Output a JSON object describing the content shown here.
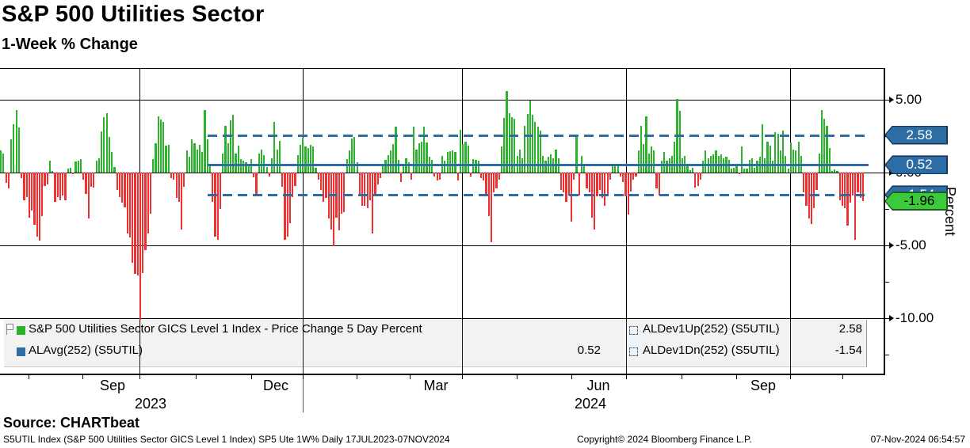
{
  "window": {
    "title": "S&P 500 Utilities Sector",
    "subtitle": "1-Week % Change"
  },
  "source_line": "Source: CHARTbeat",
  "footer": {
    "security_line": "S5UTIL Index (S&P 500 Utilities Sector GICS Level 1 Index) SP5 Ute 1W%  Daily 17JUL2023-07NOV2024",
    "copyright": "Copyright© 2024 Bloomberg Finance L.P.",
    "timestamp": "07-Nov-2024 06:54:57"
  },
  "legend": {
    "items": [
      {
        "swatch": "green-solid",
        "label": "S&P 500 Utilities Sector GICS Level 1 Index - Price Change 5 Day Percent",
        "value": ""
      },
      {
        "swatch": "blue-solid",
        "label": "ALAvg(252) (S5UTIL)",
        "value": "0.52"
      },
      {
        "swatch": "blue-dashed",
        "label": "ALDev1Up(252) (S5UTIL)",
        "value": "2.58"
      },
      {
        "swatch": "blue-dashed",
        "label": "ALDev1Dn(252) (S5UTIL)",
        "value": "-1.54"
      }
    ]
  },
  "colors": {
    "bar_up": "#2bb32b",
    "bar_down": "#ee3030",
    "overlay_blue": "#2e6da4",
    "badge_blue": "#2e6da4",
    "badge_blue_border": "#173a5e",
    "badge_green": "#3cc93c",
    "badge_green_border": "#1d5e1d",
    "grid": "#000000",
    "legend_bg": "#f0f0f0"
  },
  "axis": {
    "ylabel": "Percent",
    "yticks": [
      {
        "value": 5,
        "label": "5.00"
      },
      {
        "value": 0,
        "label": "0.00"
      },
      {
        "value": -5,
        "label": "-5.00"
      },
      {
        "value": -10,
        "label": "-10.00"
      }
    ],
    "minor_yticks": [
      2.5,
      -2.5,
      -7.5,
      -12.5
    ],
    "badges": [
      {
        "label": "2.58",
        "value": 2.58,
        "style": "blue"
      },
      {
        "label": "0.52",
        "value": 0.52,
        "style": "blue"
      },
      {
        "label": "-1.54",
        "value": -1.54,
        "style": "blue"
      },
      {
        "label": "-1.96",
        "value": -1.96,
        "style": "green"
      }
    ],
    "month_ticks_x": [
      36,
      104,
      176,
      247,
      317,
      382,
      450,
      517,
      583,
      652,
      721,
      790,
      860,
      929,
      997,
      1063
    ],
    "month_labels": [
      {
        "text": "Sep",
        "x": 142
      },
      {
        "text": "Dec",
        "x": 348
      },
      {
        "text": "Mar",
        "x": 550
      },
      {
        "text": "Jun",
        "x": 755
      },
      {
        "text": "Sep",
        "x": 963
      }
    ],
    "year_labels": [
      {
        "text": "2023",
        "x": 190
      },
      {
        "text": "2024",
        "x": 745
      }
    ],
    "year_divider_x": 382
  },
  "chart_data": {
    "type": "bar",
    "title": "S&P 500 Utilities Sector 1-Week % Change",
    "series_name": "S&P 500 Utilities Sector GICS Level 1 Index - Price Change 5 Day Percent",
    "frequency": "Daily",
    "date_range": "17JUL2023-07NOV2024",
    "ylabel": "Percent",
    "ylim": [
      -13.5,
      7.2
    ],
    "grid": true,
    "last_value": -1.96,
    "overlays": [
      {
        "name": "ALAvg(252) (S5UTIL)",
        "value": 0.52,
        "style": "solid"
      },
      {
        "name": "ALDev1Up(252) (S5UTIL)",
        "value": 2.58,
        "style": "dashed"
      },
      {
        "name": "ALDev1Dn(252) (S5UTIL)",
        "value": -1.54,
        "style": "dashed"
      }
    ],
    "values": [
      1.5,
      1.3,
      -0.7,
      -1.1,
      2.3,
      3.3,
      4.3,
      3.1,
      -0.4,
      -1.9,
      -1.7,
      -3.1,
      -2.6,
      -3.6,
      -4.4,
      -4.7,
      -3.0,
      -0.9,
      -0.8,
      0.8,
      0.1,
      -2.0,
      -1.7,
      -1.9,
      -1.6,
      -1.9,
      0.25,
      0.34,
      -0.1,
      0.76,
      0.79,
      0.92,
      -0.47,
      -1.46,
      -3.13,
      -1.0,
      -1.05,
      0.8,
      0.97,
      2.81,
      3.78,
      4.07,
      2.45,
      1.42,
      0.4,
      -1.2,
      -1.7,
      -2.05,
      -2.4,
      -4.2,
      -4.43,
      -6.2,
      -6.95,
      -7.04,
      -12.7,
      -6.9,
      -5.3,
      -4.2,
      -2.8,
      0.9,
      2.0,
      3.86,
      3.65,
      3.5,
      1.87,
      1.91,
      -0.4,
      -0.5,
      -1.75,
      -2.0,
      -3.89,
      -1.0,
      1.5,
      1.06,
      2.3,
      2.0,
      1.6,
      1.9,
      1.42,
      4.3,
      2.3,
      0.5,
      -2.0,
      -4.4,
      -4.6,
      -2.5,
      1.3,
      3.2,
      2.0,
      3.6,
      3.95,
      1.3,
      1.85,
      0.95,
      0.8,
      0.7,
      0.55,
      0.9,
      -0.3,
      -1.6,
      1.3,
      1.6,
      1.2,
      0.4,
      -0.25,
      1.0,
      3.5,
      1.6,
      2.2,
      -1.0,
      -4.6,
      -4.4,
      -3.5,
      -1.7,
      -0.9,
      1.2,
      1.9,
      2.4,
      1.8,
      1.7,
      1.9,
      1.8,
      0.35,
      -0.5,
      -1.2,
      -2.0,
      -1.73,
      -3.17,
      -3.9,
      -5.06,
      -3.1,
      -3.98,
      -2.8,
      -2.72,
      0.9,
      1.51,
      2.32,
      2.45,
      0.7,
      -1.5,
      -2.27,
      -2.3,
      -2.45,
      -1.91,
      -4.16,
      -1.64,
      -0.83,
      -0.38,
      0.5,
      0.88,
      1.2,
      1.5,
      1.96,
      3.13,
      0.88,
      -0.65,
      0.5,
      1.0,
      0.7,
      -0.47,
      3.13,
      1.6,
      2.0,
      2.14,
      3.13,
      2.05,
      1.06,
      0.88,
      -0.29,
      -0.56,
      -0.47,
      1.15,
      0.79,
      1.42,
      1.48,
      1.51,
      1.42,
      -0.56,
      2.95,
      1.96,
      2.14,
      1.87,
      -0.29,
      0.9,
      0.88,
      0.79,
      -0.38,
      -0.56,
      -1.55,
      -2.99,
      -4.79,
      -1.37,
      -1.1,
      -0.47,
      1.78,
      3.77,
      5.62,
      4.07,
      3.82,
      3.68,
      1.15,
      1.6,
      0.97,
      3.23,
      4.04,
      4.97,
      3.95,
      3.5,
      3.14,
      2.86,
      1.15,
      0.79,
      1.06,
      1.24,
      0.97,
      1.6,
      0.97,
      -1.19,
      -1.37,
      -2.0,
      -1.55,
      -3.35,
      -0.47,
      2.6,
      -1.55,
      1.15,
      0.43,
      -1.1,
      -1.37,
      -3.08,
      -3.89,
      -1.64,
      -1.19,
      -1.73,
      -2.27,
      -1.64,
      -0.47,
      0.52,
      0.61,
      0.43,
      -0.29,
      -0.65,
      -1.64,
      -2.9,
      -1.28,
      -0.47,
      -0.29,
      1.51,
      3.23,
      1.96,
      3.86,
      1.33,
      1.78,
      1.51,
      -1.1,
      -1.55,
      0.8,
      1.42,
      0.79,
      0.97,
      1.15,
      2.14,
      5.08,
      4.22,
      0.97,
      1.15,
      0.52,
      0.16,
      0.3,
      -1.01,
      -0.92,
      -0.5,
      0.8,
      1.51,
      0.97,
      1.15,
      1.24,
      1.51,
      1.15,
      1.24,
      0.97,
      1.06,
      0.88,
      0.25,
      0.34,
      0.61,
      -0.11,
      1.78,
      0.25,
      0.25,
      0.88,
      0.97,
      0.34,
      0.79,
      1.06,
      3.32,
      0.97,
      2.14,
      1.87,
      0.79,
      2.77,
      2.68,
      1.51,
      2.86,
      1.15,
      0.25,
      2.05,
      1.6,
      1.51,
      2.14,
      1.15,
      -1.37,
      -2.27,
      -3.17,
      -3.53,
      -2.45,
      -1.19,
      1.33,
      4.31,
      3.68,
      3.23,
      1.7,
      0.1,
      0.2,
      0.1,
      -1.91,
      -2.27,
      -2.45,
      -3.62,
      -2.09,
      -1.55,
      -4.61,
      -1.37,
      -1.73,
      -1.96
    ]
  }
}
